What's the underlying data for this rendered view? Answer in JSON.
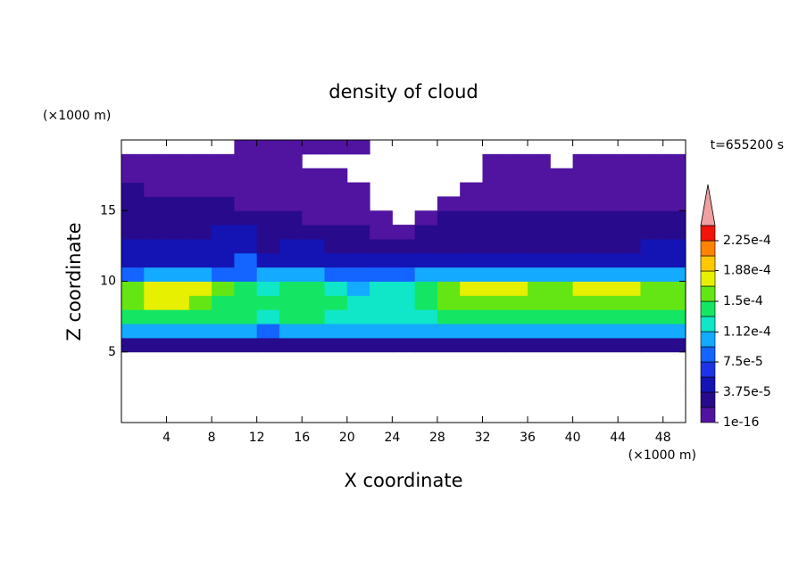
{
  "chart_data": {
    "type": "contour",
    "title": "density of cloud",
    "xlabel": "X coordinate",
    "ylabel": "Z coordinate",
    "x_unit": "(×1000 m)",
    "y_unit": "(×1000 m)",
    "annotation": "t=655200 s",
    "xlim": [
      0,
      50
    ],
    "ylim": [
      0,
      20
    ],
    "xticks": [
      4,
      8,
      12,
      16,
      20,
      24,
      28,
      32,
      36,
      40,
      44,
      48
    ],
    "yticks": [
      5,
      10,
      15
    ],
    "x": [
      1,
      3,
      5,
      7,
      9,
      11,
      13,
      15,
      17,
      19,
      21,
      23,
      25,
      27,
      29,
      31,
      33,
      35,
      37,
      39,
      41,
      43,
      45,
      47,
      49
    ],
    "y": [
      5.5,
      6.5,
      7.5,
      8.5,
      9.5,
      10.5,
      11.5,
      12.5,
      13.5,
      14.5,
      15.5,
      16.5,
      17.5,
      18.5,
      19.5
    ],
    "z": [
      [
        2.5e-05,
        2.5e-05,
        2.5e-05,
        2.5e-05,
        2.5e-05,
        2.5e-05,
        2.5e-05,
        2.5e-05,
        2.5e-05,
        2.5e-05,
        2.5e-05,
        2.5e-05,
        2.5e-05,
        2.5e-05,
        2.5e-05,
        2.5e-05,
        2.5e-05,
        2.5e-05,
        2.5e-05,
        2.5e-05,
        2.5e-05,
        2.5e-05,
        2.5e-05,
        2.5e-05,
        2.5e-05
      ],
      [
        0.0001,
        0.0001,
        0.0001,
        0.0001,
        0.0001,
        0.0001,
        8e-05,
        0.0001,
        0.0001,
        0.0001,
        0.0001,
        0.0001,
        0.0001,
        0.0001,
        0.0001,
        0.0001,
        0.0001,
        0.0001,
        0.0001,
        0.0001,
        0.0001,
        0.0001,
        0.0001,
        0.0001,
        0.0001
      ],
      [
        0.00014,
        0.00014,
        0.00014,
        0.00014,
        0.00014,
        0.00014,
        0.00012,
        0.00014,
        0.00014,
        0.00012,
        0.00012,
        0.00012,
        0.00012,
        0.00012,
        0.00014,
        0.00014,
        0.00014,
        0.00014,
        0.00014,
        0.00014,
        0.00014,
        0.00014,
        0.00014,
        0.00014,
        0.00014
      ],
      [
        0.000165,
        0.00018,
        0.00018,
        0.000165,
        0.00014,
        0.00014,
        0.00014,
        0.00014,
        0.00014,
        0.00014,
        0.00012,
        0.00012,
        0.00012,
        0.00014,
        0.000165,
        0.000165,
        0.000165,
        0.000165,
        0.000165,
        0.000165,
        0.000165,
        0.000165,
        0.000165,
        0.000165,
        0.000165
      ],
      [
        0.000165,
        0.00018,
        0.00018,
        0.00018,
        0.000165,
        0.00014,
        0.00012,
        0.00014,
        0.00014,
        0.00012,
        0.0001,
        0.00012,
        0.00012,
        0.00014,
        0.000165,
        0.00018,
        0.00018,
        0.00018,
        0.000165,
        0.000165,
        0.00018,
        0.00018,
        0.00018,
        0.000165,
        0.000165
      ],
      [
        8e-05,
        0.0001,
        0.0001,
        0.0001,
        8e-05,
        8e-05,
        0.0001,
        0.0001,
        0.0001,
        8e-05,
        8e-05,
        8e-05,
        8e-05,
        0.0001,
        0.0001,
        0.0001,
        0.0001,
        0.0001,
        0.0001,
        0.0001,
        0.0001,
        0.0001,
        0.0001,
        0.0001,
        0.0001
      ],
      [
        4.5e-05,
        4.5e-05,
        4.5e-05,
        4.5e-05,
        4.5e-05,
        8e-05,
        4.5e-05,
        4.5e-05,
        4.5e-05,
        4.5e-05,
        4.5e-05,
        4.5e-05,
        4.5e-05,
        4.5e-05,
        4.5e-05,
        4.5e-05,
        4.5e-05,
        4.5e-05,
        4.5e-05,
        4.5e-05,
        4.5e-05,
        4.5e-05,
        4.5e-05,
        4.5e-05,
        4.5e-05
      ],
      [
        4.5e-05,
        4.5e-05,
        4.5e-05,
        4.5e-05,
        4.5e-05,
        4.5e-05,
        2.5e-05,
        4.5e-05,
        4.5e-05,
        2.5e-05,
        2.5e-05,
        2.5e-05,
        2.5e-05,
        2.5e-05,
        2.5e-05,
        2.5e-05,
        2.5e-05,
        2.5e-05,
        2.5e-05,
        2.5e-05,
        2.5e-05,
        2.5e-05,
        2.5e-05,
        4.5e-05,
        4.5e-05
      ],
      [
        2.5e-05,
        2.5e-05,
        2.5e-05,
        2.5e-05,
        4.5e-05,
        4.5e-05,
        2.5e-05,
        2.5e-05,
        2.5e-05,
        2.5e-05,
        2.5e-05,
        5e-06,
        5e-06,
        2.5e-05,
        2.5e-05,
        2.5e-05,
        2.5e-05,
        2.5e-05,
        2.5e-05,
        2.5e-05,
        2.5e-05,
        2.5e-05,
        2.5e-05,
        2.5e-05,
        2.5e-05
      ],
      [
        2.5e-05,
        2.5e-05,
        2.5e-05,
        2.5e-05,
        2.5e-05,
        2.5e-05,
        2.5e-05,
        2.5e-05,
        5e-06,
        5e-06,
        5e-06,
        5e-06,
        null,
        5e-06,
        2.5e-05,
        2.5e-05,
        2.5e-05,
        2.5e-05,
        2.5e-05,
        2.5e-05,
        2.5e-05,
        2.5e-05,
        2.5e-05,
        2.5e-05,
        2.5e-05
      ],
      [
        2.5e-05,
        2.5e-05,
        2.5e-05,
        2.5e-05,
        2.5e-05,
        5e-06,
        5e-06,
        5e-06,
        5e-06,
        5e-06,
        5e-06,
        null,
        null,
        null,
        5e-06,
        5e-06,
        5e-06,
        5e-06,
        5e-06,
        5e-06,
        5e-06,
        5e-06,
        5e-06,
        5e-06,
        5e-06
      ],
      [
        2.5e-05,
        5e-06,
        5e-06,
        5e-06,
        5e-06,
        5e-06,
        5e-06,
        5e-06,
        5e-06,
        5e-06,
        5e-06,
        null,
        null,
        null,
        null,
        5e-06,
        5e-06,
        5e-06,
        5e-06,
        5e-06,
        5e-06,
        5e-06,
        5e-06,
        5e-06,
        5e-06
      ],
      [
        5e-06,
        5e-06,
        5e-06,
        5e-06,
        5e-06,
        5e-06,
        5e-06,
        5e-06,
        5e-06,
        5e-06,
        null,
        null,
        null,
        null,
        null,
        null,
        5e-06,
        5e-06,
        5e-06,
        5e-06,
        5e-06,
        5e-06,
        5e-06,
        5e-06,
        5e-06
      ],
      [
        5e-06,
        5e-06,
        5e-06,
        5e-06,
        5e-06,
        5e-06,
        5e-06,
        5e-06,
        null,
        null,
        null,
        null,
        null,
        null,
        null,
        null,
        5e-06,
        5e-06,
        5e-06,
        null,
        5e-06,
        5e-06,
        5e-06,
        5e-06,
        5e-06
      ],
      [
        null,
        null,
        null,
        null,
        null,
        5e-06,
        5e-06,
        5e-06,
        5e-06,
        5e-06,
        5e-06,
        null,
        null,
        null,
        null,
        null,
        null,
        null,
        null,
        null,
        null,
        null,
        null,
        null,
        null
      ]
    ],
    "levels": [
      1e-16,
      1.875e-05,
      3.75e-05,
      5.625e-05,
      7.5e-05,
      9.375e-05,
      0.0001125,
      0.00013125,
      0.00015,
      0.00016875,
      0.0001875,
      0.00020625,
      0.000225,
      0.00024375
    ],
    "colors": [
      "#5014a0",
      "#280a8c",
      "#1414b4",
      "#1e32e6",
      "#1464ff",
      "#14aaff",
      "#10e6c8",
      "#14e664",
      "#64e614",
      "#e6f000",
      "#ffc800",
      "#ff8200",
      "#f0140a"
    ],
    "over_color": "#f0a0a0",
    "colorbar_ticks": [
      {
        "value": 1e-16,
        "label": "1e-16"
      },
      {
        "value": 3.75e-05,
        "label": "3.75e-5"
      },
      {
        "value": 7.5e-05,
        "label": "7.5e-5"
      },
      {
        "value": 0.000112,
        "label": "1.12e-4"
      },
      {
        "value": 0.00015,
        "label": "1.5e-4"
      },
      {
        "value": 0.000188,
        "label": "1.88e-4"
      },
      {
        "value": 0.000225,
        "label": "2.25e-4"
      }
    ]
  }
}
